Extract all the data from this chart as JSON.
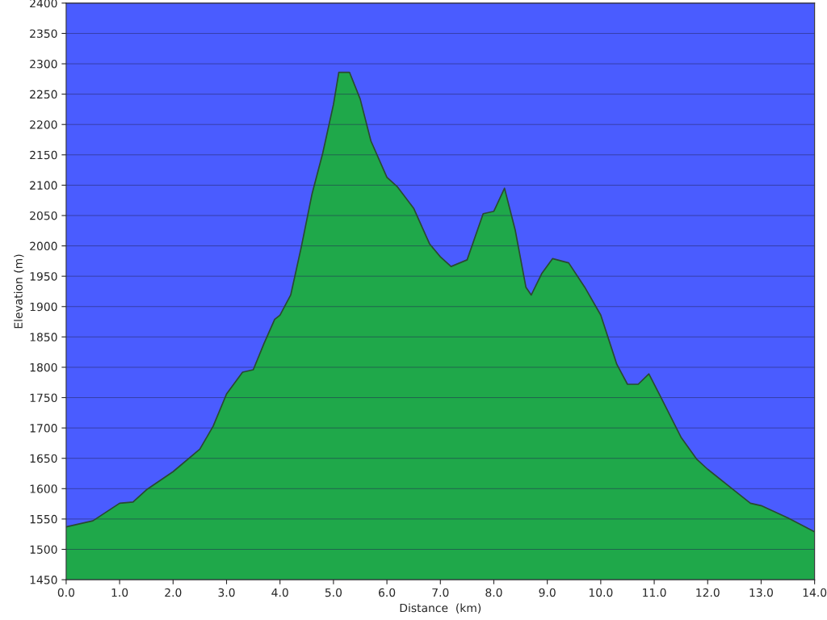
{
  "chart_data": {
    "type": "area",
    "xlabel": "Distance  (km)",
    "ylabel": "Elevation (m)",
    "grid": "y",
    "xlim": [
      0,
      14
    ],
    "ylim": [
      1450,
      2400
    ],
    "xticks": [
      {
        "value": 0,
        "label": "0.0"
      },
      {
        "value": 1,
        "label": "1.0"
      },
      {
        "value": 2,
        "label": "2.0"
      },
      {
        "value": 3,
        "label": "3.0"
      },
      {
        "value": 4,
        "label": "4.0"
      },
      {
        "value": 5,
        "label": "5.0"
      },
      {
        "value": 6,
        "label": "6.0"
      },
      {
        "value": 7,
        "label": "7.0"
      },
      {
        "value": 8,
        "label": "8.0"
      },
      {
        "value": 9,
        "label": "9.0"
      },
      {
        "value": 10,
        "label": "10.0"
      },
      {
        "value": 11,
        "label": "11.0"
      },
      {
        "value": 12,
        "label": "12.0"
      },
      {
        "value": 13,
        "label": "13.0"
      },
      {
        "value": 14,
        "label": "14.0"
      }
    ],
    "yticks": [
      1450,
      1500,
      1550,
      1600,
      1650,
      1700,
      1750,
      1800,
      1850,
      1900,
      1950,
      2000,
      2050,
      2100,
      2150,
      2200,
      2250,
      2300,
      2350,
      2400
    ],
    "series": [
      {
        "color": "#1fa84a",
        "x": [
          0,
          0.5,
          1.0,
          1.25,
          1.5,
          2.0,
          2.5,
          2.75,
          3.0,
          3.3,
          3.5,
          3.7,
          3.9,
          4.0,
          4.2,
          4.4,
          4.6,
          4.8,
          5.0,
          5.1,
          5.3,
          5.5,
          5.7,
          6.0,
          6.2,
          6.5,
          6.8,
          7.0,
          7.2,
          7.5,
          7.8,
          8.0,
          8.2,
          8.4,
          8.6,
          8.7,
          8.9,
          9.1,
          9.4,
          9.7,
          10.0,
          10.3,
          10.5,
          10.7,
          10.9,
          11.1,
          11.5,
          11.8,
          12.0,
          12.5,
          12.8,
          13.0,
          13.5,
          14.0
        ],
        "values": [
          1537,
          1547,
          1576,
          1578,
          1598,
          1628,
          1665,
          1703,
          1756,
          1792,
          1796,
          1839,
          1879,
          1886,
          1919,
          1999,
          2086,
          2153,
          2233,
          2286,
          2286,
          2242,
          2173,
          2113,
          2097,
          2062,
          2003,
          1982,
          1966,
          1977,
          2053,
          2057,
          2095,
          2026,
          1932,
          1919,
          1955,
          1979,
          1972,
          1932,
          1886,
          1805,
          1772,
          1772,
          1789,
          1755,
          1685,
          1648,
          1632,
          1597,
          1576,
          1572,
          1552,
          1529
        ]
      }
    ]
  }
}
